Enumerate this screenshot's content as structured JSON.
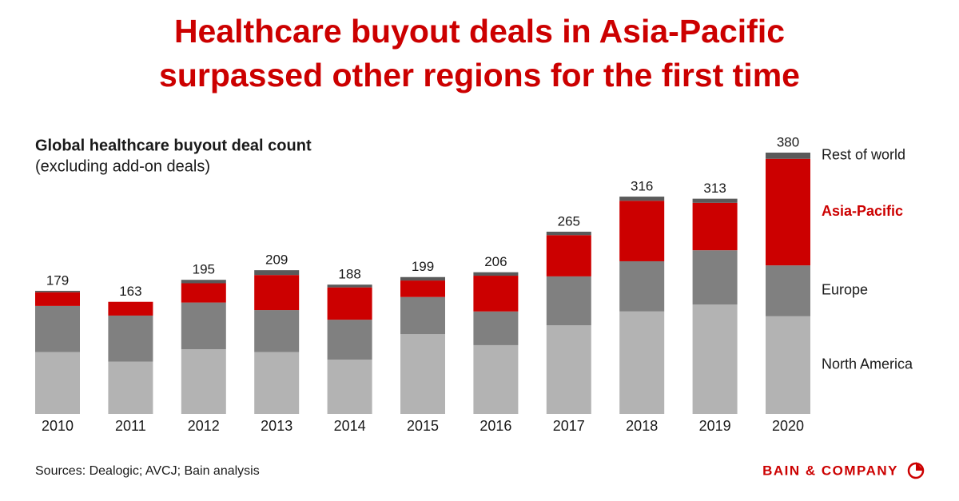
{
  "chart_data": {
    "type": "stacked-bar",
    "title": [
      "Healthcare buyout deals in Asia-Pacific",
      "surpassed other regions for the first time"
    ],
    "subtitle": "Global healthcare buyout deal count",
    "subtitle_note": "(excluding add-on deals)",
    "source": "Sources: Dealogic; AVCJ; Bain analysis",
    "brand": "BAIN & COMPANY",
    "categories": [
      "2010",
      "2011",
      "2012",
      "2013",
      "2014",
      "2015",
      "2016",
      "2017",
      "2018",
      "2019",
      "2020"
    ],
    "totals": [
      179,
      163,
      195,
      209,
      188,
      199,
      206,
      265,
      316,
      313,
      380
    ],
    "series": [
      {
        "name": "North America",
        "color": "#b3b3b3",
        "values": [
          90,
          76,
          94,
          90,
          79,
          116,
          100,
          129,
          149,
          159,
          142
        ]
      },
      {
        "name": "Europe",
        "color": "#808080",
        "values": [
          67,
          67,
          68,
          61,
          58,
          54,
          49,
          71,
          73,
          79,
          74
        ]
      },
      {
        "name": "Asia-Pacific",
        "color": "#cc0000",
        "values": [
          20,
          20,
          28,
          51,
          47,
          24,
          52,
          60,
          88,
          69,
          155
        ]
      },
      {
        "name": "Rest of world",
        "color": "#5a5a5a",
        "values": [
          2,
          0,
          5,
          7,
          4,
          5,
          5,
          5,
          6,
          6,
          9
        ]
      }
    ]
  }
}
